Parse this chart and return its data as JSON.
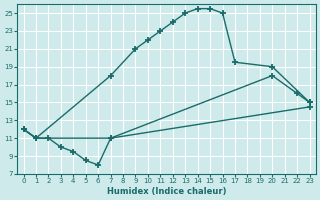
{
  "xlabel": "Humidex (Indice chaleur)",
  "xlim": [
    -0.5,
    23.5
  ],
  "ylim": [
    7,
    26
  ],
  "yticks": [
    7,
    9,
    11,
    13,
    15,
    17,
    19,
    21,
    23,
    25
  ],
  "xticks": [
    0,
    1,
    2,
    3,
    4,
    5,
    6,
    7,
    8,
    9,
    10,
    11,
    12,
    13,
    14,
    15,
    16,
    17,
    18,
    19,
    20,
    21,
    22,
    23
  ],
  "bg_color": "#ceeaea",
  "line_color": "#1a6b6b",
  "grid_color": "#ffffff",
  "line1_x": [
    0,
    1,
    7,
    9,
    10,
    11,
    12,
    13,
    14,
    15,
    16,
    17,
    20,
    23
  ],
  "line1_y": [
    12,
    11,
    18,
    21,
    22,
    23,
    24,
    25,
    25.5,
    25.5,
    25,
    19.5,
    19,
    15
  ],
  "line2_x": [
    0,
    1,
    2,
    3,
    4,
    5,
    6,
    7,
    20,
    22,
    23
  ],
  "line2_y": [
    12,
    11,
    11,
    10,
    9.5,
    8.5,
    8,
    11,
    18,
    16,
    15
  ],
  "line3_x": [
    0,
    1,
    7,
    23
  ],
  "line3_y": [
    12,
    11,
    11,
    14.5
  ]
}
